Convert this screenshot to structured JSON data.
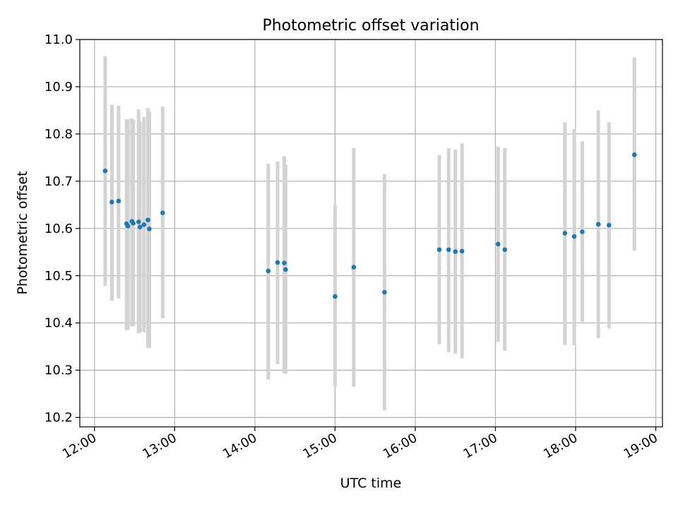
{
  "chart_data": {
    "type": "scatter",
    "title": "Photometric offset variation",
    "xlabel": "UTC time",
    "ylabel": "Photometric offset",
    "x_axis_type": "time",
    "xlim": [
      "11:49",
      "19:05"
    ],
    "ylim": [
      10.18,
      11.0
    ],
    "x_ticks": [
      "12:00",
      "13:00",
      "14:00",
      "15:00",
      "16:00",
      "17:00",
      "18:00",
      "19:00"
    ],
    "y_ticks": [
      "10.2",
      "10.3",
      "10.4",
      "10.5",
      "10.6",
      "10.7",
      "10.8",
      "10.9",
      "11.0"
    ],
    "grid": true,
    "colors": {
      "points": "#1f77b4",
      "errorbars": "#d3d3d3",
      "grid": "#b0b0b0"
    },
    "points": [
      {
        "x": "12:08",
        "y": 10.722,
        "ymin": 10.478,
        "ymax": 10.965
      },
      {
        "x": "12:13",
        "y": 10.656,
        "ymin": 10.447,
        "ymax": 10.862
      },
      {
        "x": "12:18",
        "y": 10.658,
        "ymin": 10.452,
        "ymax": 10.86
      },
      {
        "x": "12:24",
        "y": 10.61,
        "ymin": 10.385,
        "ymax": 10.831
      },
      {
        "x": "12:25",
        "y": 10.605,
        "ymin": 10.385,
        "ymax": 10.831
      },
      {
        "x": "12:28",
        "y": 10.615,
        "ymin": 10.393,
        "ymax": 10.833
      },
      {
        "x": "12:29",
        "y": 10.611,
        "ymin": 10.393,
        "ymax": 10.83
      },
      {
        "x": "12:33",
        "y": 10.614,
        "ymin": 10.378,
        "ymax": 10.852
      },
      {
        "x": "12:34",
        "y": 10.603,
        "ymin": 10.38,
        "ymax": 10.827
      },
      {
        "x": "12:37",
        "y": 10.608,
        "ymin": 10.38,
        "ymax": 10.836
      },
      {
        "x": "12:40",
        "y": 10.618,
        "ymin": 10.347,
        "ymax": 10.855
      },
      {
        "x": "12:41",
        "y": 10.599,
        "ymin": 10.347,
        "ymax": 10.848
      },
      {
        "x": "12:51",
        "y": 10.633,
        "ymin": 10.41,
        "ymax": 10.858
      },
      {
        "x": "14:10",
        "y": 10.51,
        "ymin": 10.28,
        "ymax": 10.737
      },
      {
        "x": "14:17",
        "y": 10.528,
        "ymin": 10.313,
        "ymax": 10.742
      },
      {
        "x": "14:22",
        "y": 10.527,
        "ymin": 10.293,
        "ymax": 10.753
      },
      {
        "x": "14:23",
        "y": 10.513,
        "ymin": 10.293,
        "ymax": 10.735
      },
      {
        "x": "15:00",
        "y": 10.456,
        "ymin": 10.265,
        "ymax": 10.65
      },
      {
        "x": "15:14",
        "y": 10.518,
        "ymin": 10.265,
        "ymax": 10.77
      },
      {
        "x": "15:37",
        "y": 10.465,
        "ymin": 10.215,
        "ymax": 10.715
      },
      {
        "x": "16:18",
        "y": 10.555,
        "ymin": 10.355,
        "ymax": 10.755
      },
      {
        "x": "16:25",
        "y": 10.555,
        "ymin": 10.338,
        "ymax": 10.77
      },
      {
        "x": "16:30",
        "y": 10.551,
        "ymin": 10.335,
        "ymax": 10.767
      },
      {
        "x": "16:35",
        "y": 10.552,
        "ymin": 10.325,
        "ymax": 10.78
      },
      {
        "x": "17:02",
        "y": 10.567,
        "ymin": 10.36,
        "ymax": 10.773
      },
      {
        "x": "17:07",
        "y": 10.555,
        "ymin": 10.341,
        "ymax": 10.77
      },
      {
        "x": "17:52",
        "y": 10.59,
        "ymin": 10.353,
        "ymax": 10.825
      },
      {
        "x": "17:59",
        "y": 10.583,
        "ymin": 10.353,
        "ymax": 10.811
      },
      {
        "x": "18:05",
        "y": 10.593,
        "ymin": 10.402,
        "ymax": 10.785
      },
      {
        "x": "18:17",
        "y": 10.609,
        "ymin": 10.368,
        "ymax": 10.85
      },
      {
        "x": "18:25",
        "y": 10.607,
        "ymin": 10.388,
        "ymax": 10.825
      },
      {
        "x": "18:44",
        "y": 10.756,
        "ymin": 10.553,
        "ymax": 10.962
      }
    ]
  }
}
